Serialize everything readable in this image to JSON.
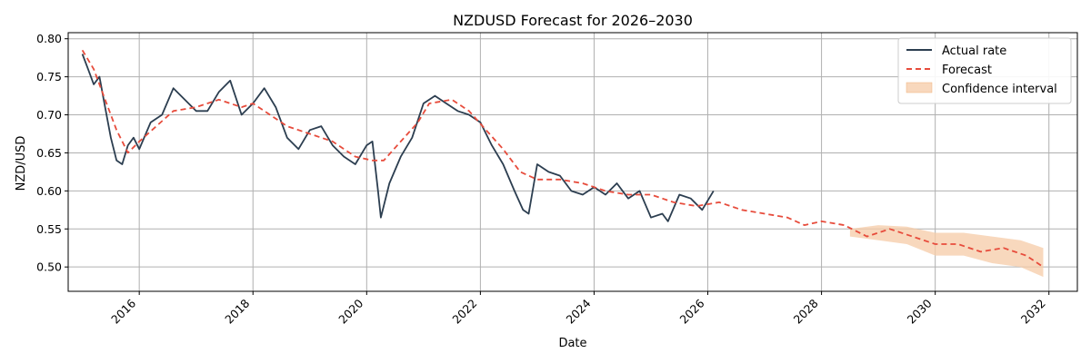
{
  "chart_data": {
    "type": "line",
    "title": "NZDUSD Forecast for 2026–2030",
    "xlabel": "Date",
    "ylabel": "NZD/USD",
    "xlim": [
      2014.75,
      2032.5
    ],
    "ylim": [
      0.468,
      0.808
    ],
    "x_ticks": [
      2016,
      2018,
      2020,
      2022,
      2024,
      2026,
      2028,
      2030,
      2032
    ],
    "x_tick_labels": [
      "2016",
      "2018",
      "2020",
      "2022",
      "2024",
      "2026",
      "2028",
      "2030",
      "2032"
    ],
    "y_ticks": [
      0.5,
      0.55,
      0.6,
      0.65,
      0.7,
      0.75,
      0.8
    ],
    "y_tick_labels": [
      "0.50",
      "0.55",
      "0.60",
      "0.65",
      "0.70",
      "0.75",
      "0.80"
    ],
    "grid": true,
    "legend_position": "top-right",
    "series": [
      {
        "name": "Actual rate",
        "color": "#2c3e50",
        "style": "solid",
        "x": [
          2015.0,
          2015.1,
          2015.2,
          2015.3,
          2015.4,
          2015.5,
          2015.6,
          2015.7,
          2015.8,
          2015.9,
          2016.0,
          2016.2,
          2016.4,
          2016.6,
          2016.8,
          2017.0,
          2017.2,
          2017.4,
          2017.6,
          2017.8,
          2018.0,
          2018.2,
          2018.4,
          2018.6,
          2018.8,
          2019.0,
          2019.2,
          2019.4,
          2019.6,
          2019.8,
          2020.0,
          2020.1,
          2020.2,
          2020.25,
          2020.4,
          2020.6,
          2020.8,
          2021.0,
          2021.2,
          2021.4,
          2021.6,
          2021.8,
          2022.0,
          2022.2,
          2022.4,
          2022.6,
          2022.75,
          2022.85,
          2023.0,
          2023.2,
          2023.4,
          2023.6,
          2023.8,
          2024.0,
          2024.2,
          2024.4,
          2024.6,
          2024.8,
          2025.0,
          2025.2,
          2025.3,
          2025.5,
          2025.7,
          2025.9,
          2026.1
        ],
        "y": [
          0.78,
          0.76,
          0.74,
          0.75,
          0.71,
          0.67,
          0.64,
          0.635,
          0.66,
          0.67,
          0.655,
          0.69,
          0.7,
          0.735,
          0.72,
          0.705,
          0.705,
          0.73,
          0.745,
          0.7,
          0.715,
          0.735,
          0.71,
          0.67,
          0.655,
          0.68,
          0.685,
          0.66,
          0.645,
          0.635,
          0.66,
          0.665,
          0.6,
          0.565,
          0.61,
          0.645,
          0.67,
          0.715,
          0.725,
          0.715,
          0.705,
          0.7,
          0.69,
          0.66,
          0.635,
          0.6,
          0.575,
          0.57,
          0.635,
          0.625,
          0.62,
          0.6,
          0.595,
          0.605,
          0.595,
          0.61,
          0.59,
          0.6,
          0.565,
          0.57,
          0.56,
          0.595,
          0.59,
          0.575,
          0.6
        ]
      },
      {
        "name": "Forecast",
        "color": "#e74c3c",
        "style": "dashed",
        "x": [
          2015.0,
          2015.2,
          2015.4,
          2015.6,
          2015.8,
          2016.0,
          2016.3,
          2016.6,
          2017.0,
          2017.4,
          2017.8,
          2018.0,
          2018.3,
          2018.6,
          2019.0,
          2019.4,
          2019.8,
          2020.1,
          2020.3,
          2020.6,
          2020.9,
          2021.1,
          2021.5,
          2021.8,
          2022.1,
          2022.4,
          2022.7,
          2023.0,
          2023.4,
          2023.8,
          2024.2,
          2024.6,
          2025.0,
          2025.4,
          2025.8,
          2026.2,
          2026.6,
          2027.0,
          2027.4,
          2027.7,
          2028.0,
          2028.4,
          2028.8,
          2029.2,
          2029.6,
          2030.0,
          2030.4,
          2030.8,
          2031.2,
          2031.6,
          2031.9
        ],
        "y": [
          0.785,
          0.76,
          0.72,
          0.68,
          0.65,
          0.665,
          0.685,
          0.705,
          0.71,
          0.72,
          0.71,
          0.715,
          0.7,
          0.685,
          0.675,
          0.665,
          0.645,
          0.64,
          0.64,
          0.665,
          0.69,
          0.715,
          0.72,
          0.705,
          0.68,
          0.655,
          0.625,
          0.615,
          0.615,
          0.61,
          0.6,
          0.595,
          0.595,
          0.585,
          0.58,
          0.585,
          0.575,
          0.57,
          0.565,
          0.555,
          0.56,
          0.555,
          0.54,
          0.55,
          0.54,
          0.53,
          0.53,
          0.52,
          0.525,
          0.515,
          0.5
        ]
      },
      {
        "name": "Confidence interval",
        "color": "#f5cba7",
        "style": "band",
        "x": [
          2028.5,
          2029.0,
          2029.5,
          2030.0,
          2030.5,
          2031.0,
          2031.5,
          2031.9
        ],
        "lower": [
          0.54,
          0.535,
          0.53,
          0.515,
          0.515,
          0.505,
          0.5,
          0.487
        ],
        "upper": [
          0.55,
          0.555,
          0.553,
          0.545,
          0.545,
          0.54,
          0.535,
          0.525
        ]
      }
    ]
  }
}
